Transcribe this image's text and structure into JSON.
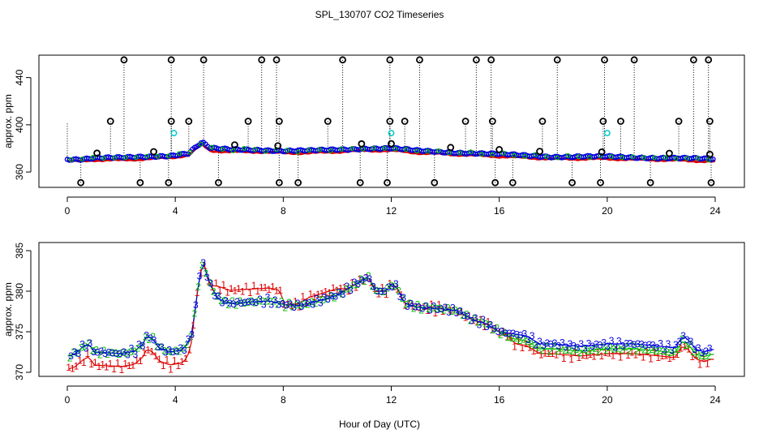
{
  "title": "SPL_130707  CO2 Timeseries",
  "xlabel": "Hour of Day (UTC)",
  "colors": {
    "s1": "#dd0000",
    "s2": "#00bb00",
    "s3": "#0000dd",
    "ring": "#000000",
    "cyan": "#00cccc",
    "line": "#000000"
  },
  "chart_data": [
    {
      "type": "scatter",
      "title": "",
      "ylabel": "approx. ppm",
      "xlim": [
        0,
        24
      ],
      "ylim": [
        347,
        459
      ],
      "x_ticks": [
        "0",
        "4",
        "8",
        "12",
        "16",
        "20",
        "24"
      ],
      "y_ticks": [
        "360",
        "400",
        "440"
      ],
      "base_anchors": [
        [
          0,
          371
        ],
        [
          0.5,
          371
        ],
        [
          1,
          372
        ],
        [
          2,
          372
        ],
        [
          3,
          373
        ],
        [
          3.8,
          374
        ],
        [
          4.5,
          376
        ],
        [
          4.8,
          382
        ],
        [
          5.0,
          385
        ],
        [
          5.3,
          380
        ],
        [
          6,
          379
        ],
        [
          7,
          379
        ],
        [
          8,
          378
        ],
        [
          9,
          378
        ],
        [
          10,
          379
        ],
        [
          11,
          380
        ],
        [
          11.5,
          380
        ],
        [
          12,
          380
        ],
        [
          13,
          378
        ],
        [
          14,
          377
        ],
        [
          15,
          376
        ],
        [
          16,
          375
        ],
        [
          18,
          373
        ],
        [
          20,
          373
        ],
        [
          22,
          372
        ],
        [
          23.8,
          371
        ]
      ],
      "red_offset": -2,
      "high_outliers": [
        2.1,
        3.85,
        5.05,
        7.2,
        7.75,
        10.2,
        11.95,
        13.05,
        15.15,
        15.7,
        18.15,
        19.9,
        21.0,
        23.2,
        23.75
      ],
      "high_outlier_value": 455,
      "mid_outliers": [
        1.6,
        3.85,
        4.5,
        6.7,
        7.85,
        9.65,
        11.95,
        12.5,
        14.75,
        15.75,
        17.6,
        19.85,
        20.5,
        22.65,
        23.8
      ],
      "mid_outlier_value": 403,
      "low_outliers": [
        0.5,
        2.7,
        3.75,
        5.6,
        7.85,
        8.55,
        10.85,
        11.85,
        13.6,
        15.85,
        16.5,
        18.7,
        19.75,
        21.6,
        23.85
      ],
      "low_outlier_value": 351,
      "near_outliers": [
        1.1,
        3.2,
        6.2,
        7.8,
        10.9,
        12.0,
        14.2,
        16.0,
        17.5,
        19.8,
        22.3,
        23.8
      ],
      "cyan_points": [
        [
          3.95,
          393
        ],
        [
          12.0,
          393
        ],
        [
          20.0,
          393
        ]
      ]
    },
    {
      "type": "scatter",
      "title": "",
      "ylabel": "approx. ppm",
      "xlim": [
        0,
        24
      ],
      "ylim": [
        369.5,
        386
      ],
      "x_ticks": [
        "0",
        "4",
        "8",
        "12",
        "16",
        "20",
        "24"
      ],
      "y_ticks": [
        "370",
        "375",
        "380",
        "385"
      ],
      "series": [
        {
          "label": "1"
        },
        {
          "label": "2"
        },
        {
          "label": "3"
        }
      ],
      "anchors": [
        [
          0.05,
          372
        ],
        [
          0.3,
          372.3
        ],
        [
          0.6,
          373.2
        ],
        [
          0.8,
          373.5
        ],
        [
          1,
          372.5
        ],
        [
          2,
          372.3
        ],
        [
          2.5,
          372.6
        ],
        [
          2.8,
          373.5
        ],
        [
          2.95,
          374.5
        ],
        [
          3.2,
          374
        ],
        [
          3.4,
          373
        ],
        [
          3.8,
          372.5
        ],
        [
          4.3,
          372.8
        ],
        [
          4.6,
          374.5
        ],
        [
          4.75,
          378
        ],
        [
          4.9,
          382
        ],
        [
          5.05,
          383.5
        ],
        [
          5.25,
          381
        ],
        [
          5.6,
          379
        ],
        [
          6,
          378.5
        ],
        [
          6.5,
          378.6
        ],
        [
          7,
          378.7
        ],
        [
          7.5,
          378.8
        ],
        [
          7.85,
          378.5
        ],
        [
          8.1,
          378.3
        ],
        [
          8.5,
          378.2
        ],
        [
          9,
          378.5
        ],
        [
          9.5,
          379
        ],
        [
          10,
          379.5
        ],
        [
          10.5,
          380.5
        ],
        [
          11,
          381.5
        ],
        [
          11.2,
          381.6
        ],
        [
          11.4,
          380
        ],
        [
          11.8,
          380
        ],
        [
          12,
          380.8
        ],
        [
          12.2,
          380.5
        ],
        [
          12.5,
          378.5
        ],
        [
          13,
          378
        ],
        [
          14,
          377.8
        ],
        [
          14.5,
          377.5
        ],
        [
          15,
          376.5
        ],
        [
          15.5,
          376
        ],
        [
          16,
          375
        ],
        [
          17,
          374.5
        ],
        [
          17.5,
          373.5
        ],
        [
          18,
          373.5
        ],
        [
          19,
          373.2
        ],
        [
          20,
          373.5
        ],
        [
          21,
          373.5
        ],
        [
          22,
          373.2
        ],
        [
          22.5,
          373
        ],
        [
          22.8,
          374.5
        ],
        [
          23,
          374
        ],
        [
          23.3,
          372.8
        ],
        [
          23.6,
          372.5
        ],
        [
          23.8,
          372.8
        ]
      ],
      "red_offsets": [
        [
          0,
          -1.6
        ],
        [
          4.5,
          -1.6
        ],
        [
          4.7,
          0
        ],
        [
          5.3,
          0
        ],
        [
          5.6,
          1.6
        ],
        [
          7.9,
          1.6
        ],
        [
          8.0,
          0
        ],
        [
          8.5,
          0.2
        ],
        [
          9,
          0.8
        ],
        [
          10,
          0.8
        ],
        [
          10.4,
          0
        ],
        [
          16.2,
          0
        ],
        [
          16.6,
          -1.2
        ],
        [
          24,
          -1.2
        ]
      ],
      "green_offsets": [
        [
          0,
          0
        ],
        [
          16,
          0
        ],
        [
          16.5,
          -0.6
        ],
        [
          24,
          -0.6
        ]
      ]
    }
  ]
}
